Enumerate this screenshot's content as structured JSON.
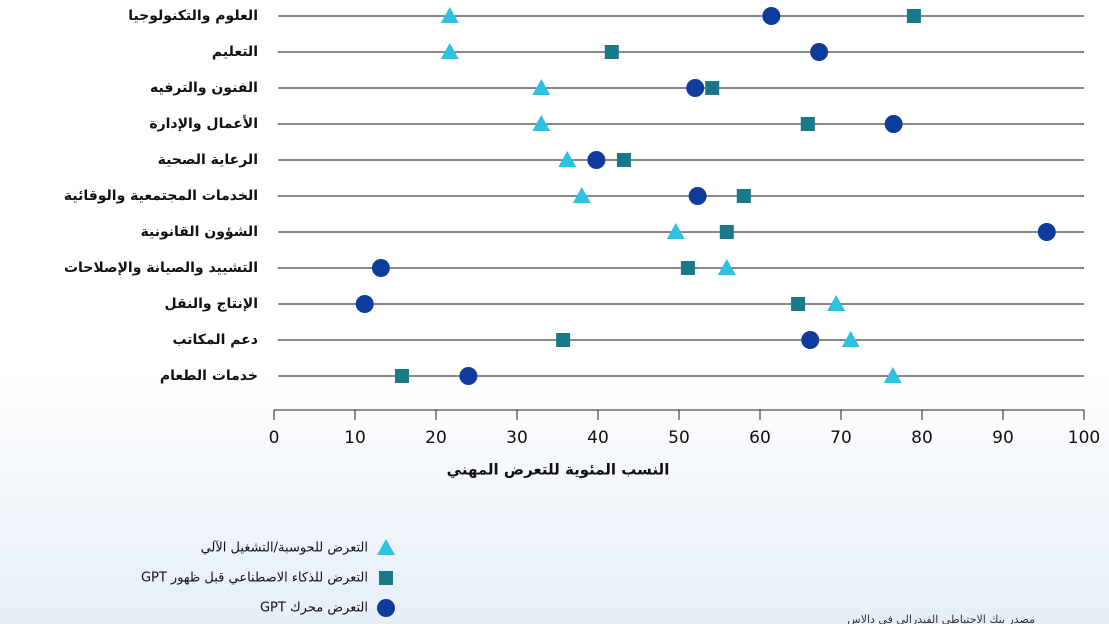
{
  "chart_data": {
    "type": "dot",
    "xlabel": "النسب المئوية للتعرض المهني",
    "source": "مصدر بنك الاحتياطي الفيدرالي في دالاس",
    "categories": [
      "العلوم والتكنولوجيا",
      "التعليم",
      "الفنون والترفيه",
      "الأعمال والإدارة",
      "الرعاية الصحية",
      "الخدمات المجتمعية والوقائية",
      "الشؤون القانونية",
      "التشييد والصيانة والإصلاحات",
      "الإنتاج والنقل",
      "دعم المكاتب",
      "خدمات الطعام"
    ],
    "series": [
      {
        "name": "التعرض للحوسبة/التشغيل الآلي",
        "color": "#2cc3e0",
        "marker": "triangle",
        "values": [
          21.7,
          21.7,
          33.0,
          33.0,
          36.2,
          38.0,
          49.6,
          55.9,
          69.4,
          71.2,
          76.4
        ]
      },
      {
        "name": "التعرض للذكاء الاصطناعي قبل ظهور GPT",
        "color": "#17798a",
        "marker": "square",
        "values": [
          79.0,
          41.7,
          54.1,
          65.9,
          43.2,
          58.0,
          55.9,
          51.1,
          64.7,
          35.7,
          15.8
        ]
      },
      {
        "name": "التعرض محرك GPT",
        "color": "#0f3c9c",
        "marker": "circle",
        "values": [
          61.4,
          67.3,
          52.0,
          76.5,
          39.8,
          52.3,
          95.4,
          13.2,
          11.2,
          66.2,
          24.0
        ]
      }
    ],
    "xlim": [
      0,
      100
    ],
    "xticks": [
      0,
      10,
      20,
      30,
      40,
      50,
      60,
      70,
      80,
      90,
      100
    ]
  }
}
